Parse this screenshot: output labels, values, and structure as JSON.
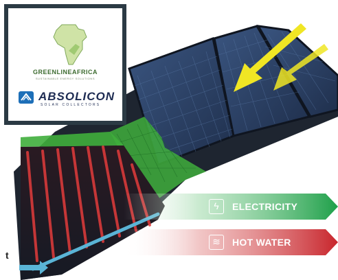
{
  "logos": {
    "greenline": {
      "name": "GREENLINEAFRICA",
      "tagline": "SUSTAINABLE ENERGY SOLUTIONS"
    },
    "absolicon": {
      "name": "ABSOLICON",
      "tagline": "SOLAR COLLECTORS"
    }
  },
  "banners": [
    {
      "label": "ELECTRICITY",
      "icon": "lightning-icon",
      "color": "#1fa04a"
    },
    {
      "label": "HOT WATER",
      "icon": "heat-waves-icon",
      "color": "#c8252c"
    }
  ],
  "edge_text": "t",
  "colors": {
    "panel_frame": "#1e2530",
    "pv_cell": "#2c4166",
    "thermal_tube": "#e23b3b",
    "green_overlay": "#3fae3c",
    "sun_arrow": "#f0e624",
    "flow_arrow": "#5ab4d6"
  }
}
